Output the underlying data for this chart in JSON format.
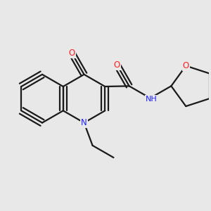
{
  "bg_color": "#e8e8e8",
  "bond_color": "#1a1a1a",
  "line_width": 1.6,
  "atom_colors": {
    "N": "#2020ff",
    "O": "#ff2020",
    "C": "#1a1a1a"
  },
  "font_size": 8.5
}
